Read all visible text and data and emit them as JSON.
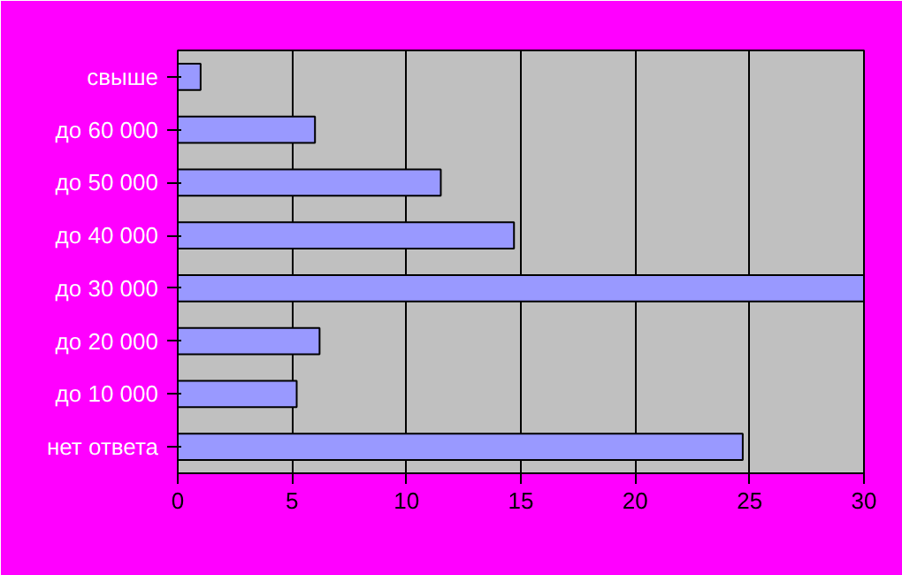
{
  "chart_data": {
    "type": "bar",
    "orientation": "horizontal",
    "categories": [
      "свыше",
      "до 60 000",
      "до 50 000",
      "до 40 000",
      "до 30 000",
      "до 20 000",
      "до 10 000",
      "нет ответа"
    ],
    "values": [
      1,
      6,
      11.5,
      14.7,
      30,
      6.2,
      5.2,
      24.7
    ],
    "color": "#9999ff",
    "xlim": [
      0,
      30
    ],
    "xticks": [
      0,
      5,
      10,
      15,
      20,
      25,
      30
    ],
    "grid": "x"
  }
}
